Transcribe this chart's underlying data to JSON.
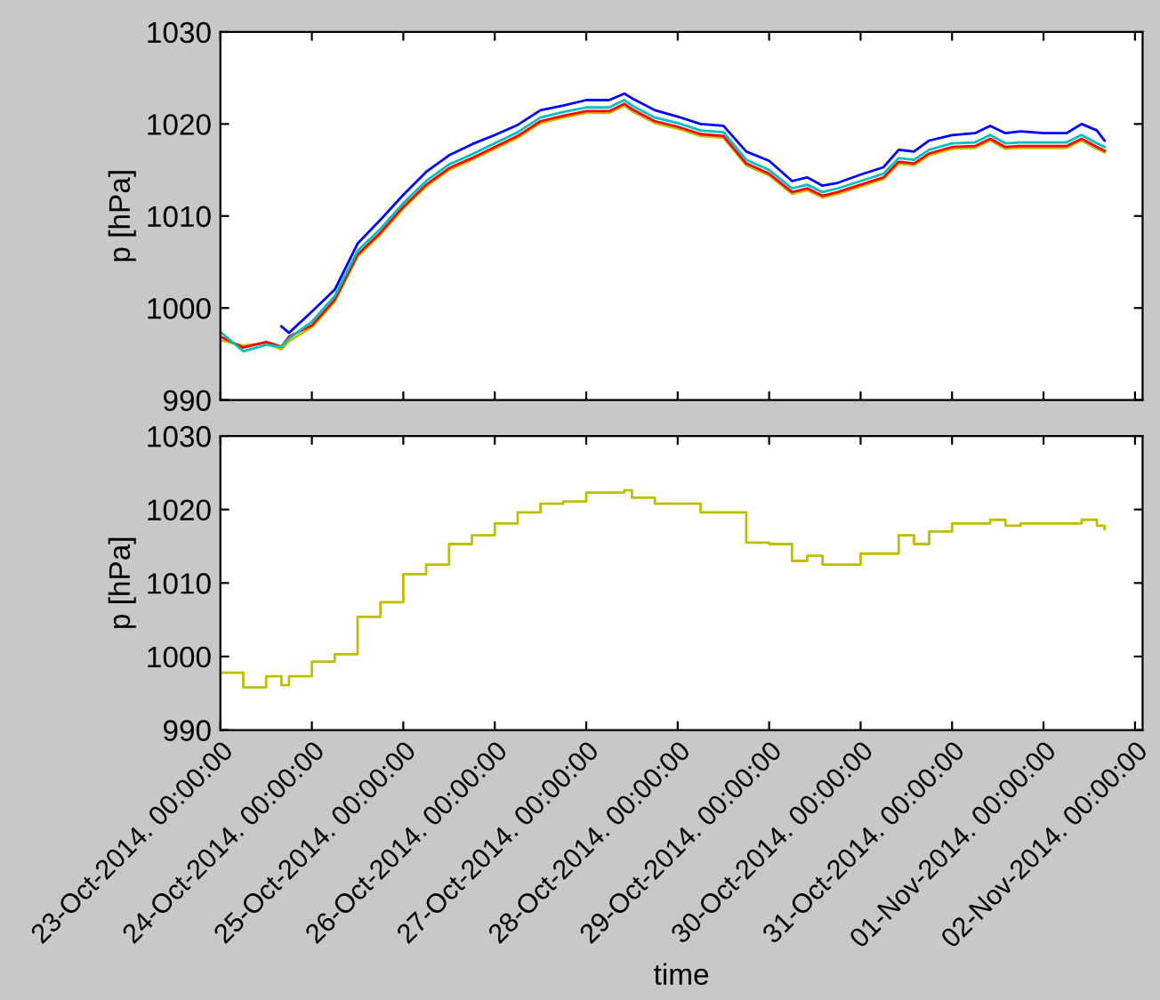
{
  "chart_data": [
    {
      "type": "line",
      "ylabel": "p [hPa]",
      "ylim": [
        990,
        1030
      ],
      "yticks": [
        990,
        1000,
        1010,
        1020,
        1030
      ],
      "xlim": [
        "2014-10-23T00:00",
        "2014-11-02T02:00"
      ],
      "tick_labels": "y",
      "grid": false,
      "xticks": [
        {
          "value": "2014-10-23T00:00",
          "label": null
        },
        {
          "value": "2014-10-24T00:00",
          "label": null
        },
        {
          "value": "2014-10-25T00:00",
          "label": null
        },
        {
          "value": "2014-10-26T00:00",
          "label": null
        },
        {
          "value": "2014-10-27T00:00",
          "label": null
        },
        {
          "value": "2014-10-28T00:00",
          "label": null
        },
        {
          "value": "2014-10-29T00:00",
          "label": null
        },
        {
          "value": "2014-10-30T00:00",
          "label": null
        },
        {
          "value": "2014-10-31T00:00",
          "label": null
        },
        {
          "value": "2014-11-01T00:00",
          "label": null
        },
        {
          "value": "2014-11-02T00:00",
          "label": null
        }
      ],
      "x": [
        "2014-10-23T00:00",
        "2014-10-23T06:00",
        "2014-10-23T12:00",
        "2014-10-23T16:00",
        "2014-10-23T18:00",
        "2014-10-24T00:00",
        "2014-10-24T06:00",
        "2014-10-24T12:00",
        "2014-10-24T18:00",
        "2014-10-25T00:00",
        "2014-10-25T06:00",
        "2014-10-25T12:00",
        "2014-10-25T18:00",
        "2014-10-26T00:00",
        "2014-10-26T06:00",
        "2014-10-26T12:00",
        "2014-10-26T18:00",
        "2014-10-27T00:00",
        "2014-10-27T06:00",
        "2014-10-27T10:00",
        "2014-10-27T12:00",
        "2014-10-27T18:00",
        "2014-10-28T00:00",
        "2014-10-28T06:00",
        "2014-10-28T12:00",
        "2014-10-28T18:00",
        "2014-10-29T00:00",
        "2014-10-29T06:00",
        "2014-10-29T10:00",
        "2014-10-29T14:00",
        "2014-10-29T18:00",
        "2014-10-30T00:00",
        "2014-10-30T06:00",
        "2014-10-30T10:00",
        "2014-10-30T14:00",
        "2014-10-30T18:00",
        "2014-10-31T00:00",
        "2014-10-31T06:00",
        "2014-10-31T10:00",
        "2014-10-31T14:00",
        "2014-10-31T18:00",
        "2014-11-01T00:00",
        "2014-11-01T06:00",
        "2014-11-01T10:00",
        "2014-11-01T14:00",
        "2014-11-01T16:00"
      ],
      "series": [
        {
          "color": "#bfbf00",
          "values": [
            996.5,
            995.9,
            996.2,
            995.5,
            996.4,
            997.9,
            1000.7,
            1005.6,
            1008.0,
            1010.8,
            1013.2,
            1015.0,
            1016.1,
            1017.3,
            1018.5,
            1020.1,
            1020.7,
            1021.2,
            1021.2,
            1022.0,
            1021.4,
            1020.1,
            1019.5,
            1018.7,
            1018.5,
            1015.5,
            1014.4,
            1012.4,
            1012.8,
            1012.0,
            1012.4,
            1013.2,
            1014.0,
            1015.7,
            1015.5,
            1016.6,
            1017.3,
            1017.4,
            1018.2,
            1017.3,
            1017.4,
            1017.4,
            1017.4,
            1018.2,
            1017.3,
            1016.9
          ]
        },
        {
          "color": "#ff0000",
          "values": [
            996.9,
            995.7,
            996.3,
            995.8,
            996.9,
            998.1,
            1000.9,
            1005.8,
            1008.2,
            1011.0,
            1013.4,
            1015.2,
            1016.3,
            1017.5,
            1018.7,
            1020.3,
            1020.9,
            1021.4,
            1021.4,
            1022.2,
            1021.6,
            1020.3,
            1019.7,
            1018.9,
            1018.7,
            1015.7,
            1014.6,
            1012.6,
            1013.0,
            1012.2,
            1012.6,
            1013.4,
            1014.2,
            1015.9,
            1015.7,
            1016.8,
            1017.5,
            1017.6,
            1018.4,
            1017.5,
            1017.6,
            1017.6,
            1017.6,
            1018.4,
            1017.5,
            1017.1
          ]
        },
        {
          "color": "#00bfbf",
          "values": [
            997.4,
            995.3,
            996.0,
            995.8,
            996.7,
            998.5,
            1001.3,
            1006.2,
            1008.6,
            1011.4,
            1013.8,
            1015.6,
            1016.7,
            1017.9,
            1019.1,
            1020.7,
            1021.3,
            1021.8,
            1021.8,
            1022.6,
            1022.0,
            1020.7,
            1020.1,
            1019.3,
            1019.1,
            1016.1,
            1015.0,
            1013.0,
            1013.4,
            1012.6,
            1013.0,
            1013.8,
            1014.6,
            1016.3,
            1016.1,
            1017.2,
            1017.9,
            1018.0,
            1018.8,
            1017.9,
            1018.0,
            1018.0,
            1018.0,
            1018.8,
            1017.9,
            1017.5
          ]
        },
        {
          "color": "#0000ff",
          "values": [
            null,
            null,
            null,
            998.0,
            997.3,
            999.6,
            1002.0,
            1007.0,
            1009.6,
            1012.3,
            1014.8,
            1016.6,
            1017.8,
            1018.8,
            1019.9,
            1021.5,
            1022.0,
            1022.6,
            1022.6,
            1023.3,
            1022.8,
            1021.5,
            1020.8,
            1020.0,
            1019.8,
            1017.0,
            1016.0,
            1013.8,
            1014.2,
            1013.3,
            1013.6,
            1014.5,
            1015.3,
            1017.2,
            1017.0,
            1018.2,
            1018.8,
            1019.0,
            1019.8,
            1019.0,
            1019.2,
            1019.0,
            1019.0,
            1020.0,
            1019.3,
            1018.2
          ]
        }
      ]
    },
    {
      "type": "step",
      "ylabel": "p [hPa]",
      "xlabel": "time",
      "ylim": [
        990,
        1030
      ],
      "yticks": [
        990,
        1000,
        1010,
        1020,
        1030
      ],
      "xlim": [
        "2014-10-23T00:00",
        "2014-11-02T02:00"
      ],
      "grid": false,
      "xticks": [
        {
          "value": "2014-10-23T00:00",
          "label": "23-Oct-2014. 00:00:00"
        },
        {
          "value": "2014-10-24T00:00",
          "label": "24-Oct-2014. 00:00:00"
        },
        {
          "value": "2014-10-25T00:00",
          "label": "25-Oct-2014. 00:00:00"
        },
        {
          "value": "2014-10-26T00:00",
          "label": "26-Oct-2014. 00:00:00"
        },
        {
          "value": "2014-10-27T00:00",
          "label": "27-Oct-2014. 00:00:00"
        },
        {
          "value": "2014-10-28T00:00",
          "label": "28-Oct-2014. 00:00:00"
        },
        {
          "value": "2014-10-29T00:00",
          "label": "29-Oct-2014. 00:00:00"
        },
        {
          "value": "2014-10-30T00:00",
          "label": "30-Oct-2014. 00:00:00"
        },
        {
          "value": "2014-10-31T00:00",
          "label": "31-Oct-2014. 00:00:00"
        },
        {
          "value": "2014-11-01T00:00",
          "label": "01-Nov-2014. 00:00:00"
        },
        {
          "value": "2014-11-02T00:00",
          "label": "02-Nov-2014. 00:00:00"
        }
      ],
      "x": [
        "2014-10-23T00:00",
        "2014-10-23T06:00",
        "2014-10-23T12:00",
        "2014-10-23T16:00",
        "2014-10-23T18:00",
        "2014-10-24T00:00",
        "2014-10-24T06:00",
        "2014-10-24T12:00",
        "2014-10-24T18:00",
        "2014-10-25T00:00",
        "2014-10-25T06:00",
        "2014-10-25T12:00",
        "2014-10-25T18:00",
        "2014-10-26T00:00",
        "2014-10-26T06:00",
        "2014-10-26T12:00",
        "2014-10-26T18:00",
        "2014-10-27T00:00",
        "2014-10-27T06:00",
        "2014-10-27T10:00",
        "2014-10-27T12:00",
        "2014-10-27T18:00",
        "2014-10-28T00:00",
        "2014-10-28T06:00",
        "2014-10-28T12:00",
        "2014-10-28T18:00",
        "2014-10-29T00:00",
        "2014-10-29T06:00",
        "2014-10-29T10:00",
        "2014-10-29T14:00",
        "2014-10-29T18:00",
        "2014-10-30T00:00",
        "2014-10-30T06:00",
        "2014-10-30T10:00",
        "2014-10-30T14:00",
        "2014-10-30T18:00",
        "2014-10-31T00:00",
        "2014-10-31T06:00",
        "2014-10-31T10:00",
        "2014-10-31T14:00",
        "2014-10-31T18:00",
        "2014-11-01T00:00",
        "2014-11-01T06:00",
        "2014-11-01T10:00",
        "2014-11-01T14:00",
        "2014-11-01T16:00"
      ],
      "series": [
        {
          "color": "#bfbf00",
          "values": [
            997.8,
            995.8,
            997.3,
            996.1,
            997.3,
            999.3,
            1000.3,
            1005.4,
            1007.4,
            1011.2,
            1012.5,
            1015.3,
            1016.5,
            1018.1,
            1019.6,
            1020.8,
            1021.1,
            1022.3,
            1022.3,
            1022.6,
            1021.6,
            1020.8,
            1020.8,
            1019.6,
            1019.6,
            1015.5,
            1015.3,
            1013.0,
            1013.7,
            1012.5,
            1012.5,
            1014.0,
            1014.0,
            1016.5,
            1015.3,
            1017.0,
            1018.1,
            1018.1,
            1018.6,
            1017.8,
            1018.1,
            1018.1,
            1018.1,
            1018.6,
            1017.8,
            1017.3
          ]
        }
      ]
    }
  ]
}
